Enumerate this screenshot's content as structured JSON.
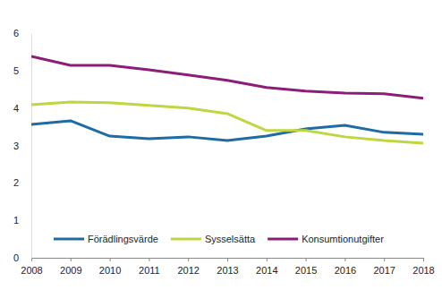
{
  "chart_data": {
    "type": "line",
    "x": [
      2008,
      2009,
      2010,
      2011,
      2012,
      2013,
      2014,
      2015,
      2016,
      2017,
      2018
    ],
    "series": [
      {
        "name": "Förädlingsvärde",
        "color": "#1f6ba3",
        "values": [
          3.56,
          3.66,
          3.25,
          3.18,
          3.23,
          3.13,
          3.25,
          3.44,
          3.54,
          3.35,
          3.3
        ]
      },
      {
        "name": "Sysselsätta",
        "color": "#bfd641",
        "values": [
          4.09,
          4.16,
          4.14,
          4.07,
          4.0,
          3.85,
          3.4,
          3.4,
          3.23,
          3.13,
          3.06
        ]
      },
      {
        "name": "Konsumtionutgifter",
        "color": "#8c1d78",
        "values": [
          5.38,
          5.14,
          5.14,
          5.02,
          4.88,
          4.74,
          4.55,
          4.45,
          4.4,
          4.38,
          4.26
        ]
      }
    ],
    "xlim": [
      2008,
      2018
    ],
    "xticks": [
      2008,
      2009,
      2010,
      2011,
      2012,
      2013,
      2014,
      2015,
      2016,
      2017,
      2018
    ],
    "ylim": [
      0,
      6
    ],
    "yticks": [
      0,
      1,
      2,
      3,
      4,
      5,
      6
    ],
    "grid": false,
    "legend": "lower left"
  }
}
